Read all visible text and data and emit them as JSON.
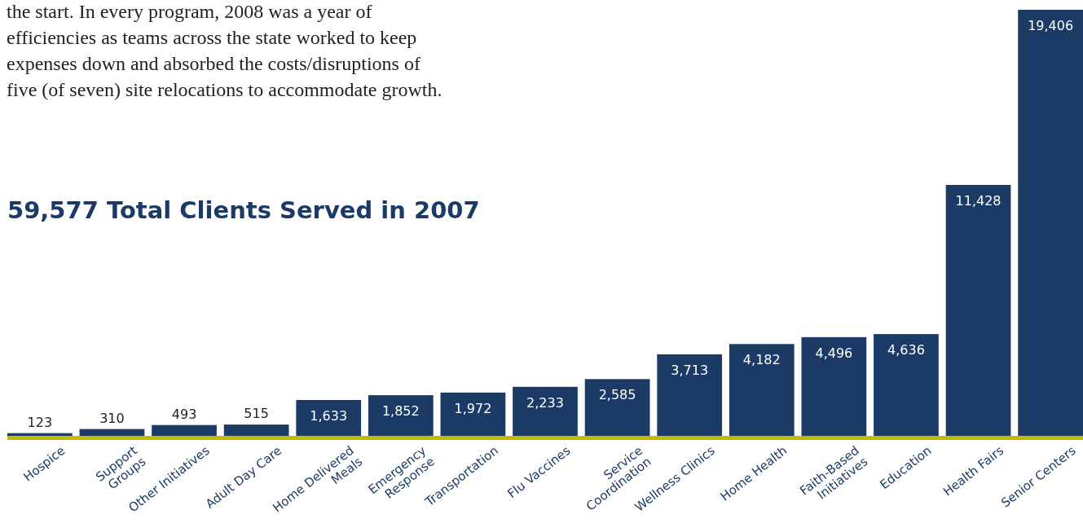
{
  "chart_data": {
    "type": "bar",
    "title": "59,577 Total Clients Served in 2007",
    "annotations": [
      "the start. In every program, 2008 was a year of\nefficiencies as teams across the state worked to keep\nexpenses down and absorbed the costs/disruptions of\nfive (of seven) site relocations to accommodate growth."
    ],
    "categories": [
      "Hospice",
      "Support\nGroups",
      "Other Initiatives",
      "Adult Day Care",
      "Home Delivered\nMeals",
      "Emergency\nResponse",
      "Transportation",
      "Flu Vaccines",
      "Service\nCoordination",
      "Wellness Clinics",
      "Home Health",
      "Faith-Based\nInitiatives",
      "Education",
      "Health Fairs",
      "Senior Centers"
    ],
    "values": [
      123,
      310,
      493,
      515,
      1633,
      1852,
      1972,
      2233,
      2585,
      3713,
      4182,
      4496,
      4636,
      11428,
      19406
    ],
    "value_labels": [
      "123",
      "310",
      "493",
      "515",
      "1,633",
      "1,852",
      "1,972",
      "2,233",
      "2,585",
      "3,713",
      "4,182",
      "4,496",
      "4,636",
      "11,428",
      "19,406"
    ],
    "color": "#1b3a66"
  }
}
